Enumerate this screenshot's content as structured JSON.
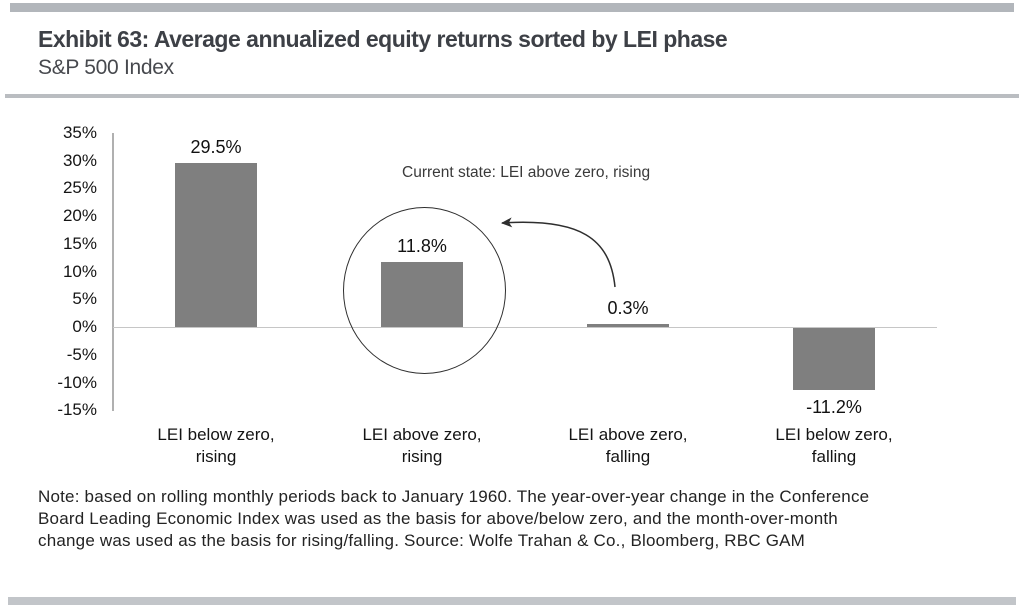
{
  "header": {
    "title": "Exhibit 63: Average annualized equity returns sorted by LEI phase",
    "subtitle": "S&P 500 Index"
  },
  "annotation": {
    "label": "Current state: LEI above zero, rising"
  },
  "note_lines": [
    "Note: based on rolling monthly periods back to January 1960. The year-over-year change in the Conference",
    "Board Leading Economic Index was used as the basis for above/below zero, and the month-over-month",
    "change was used as the basis for rising/falling. Source: Wolfe Trahan & Co., Bloomberg, RBC GAM"
  ],
  "colors": {
    "bar": "#7f7f7f",
    "title_text": "#3d4046",
    "rule_top": "#b2b6bb",
    "rule_mid": "#babdc1",
    "rule_bottom": "#c2c5c9",
    "axis_line": "#b0b0b0",
    "zero_line": "#c6c6c6"
  },
  "chart_data": {
    "type": "bar",
    "title": "Exhibit 63: Average annualized equity returns sorted by LEI phase",
    "subtitle": "S&P 500 Index",
    "categories": [
      "LEI below zero,\nrising",
      "LEI above zero,\nrising",
      "LEI above zero,\nfalling",
      "LEI below zero,\nfalling"
    ],
    "values": [
      29.5,
      11.8,
      0.3,
      -11.2
    ],
    "value_labels": [
      "29.5%",
      "11.8%",
      "0.3%",
      "-11.2%"
    ],
    "xlabel": "",
    "ylabel": "",
    "ylim": [
      -15,
      35
    ],
    "ytick_step": 5,
    "ytick_suffix": "%",
    "grid": false,
    "legend": false,
    "bar_color": "#7f7f7f",
    "highlight": {
      "category_index": 1,
      "annotation": "Current state: LEI above zero, rising"
    }
  }
}
